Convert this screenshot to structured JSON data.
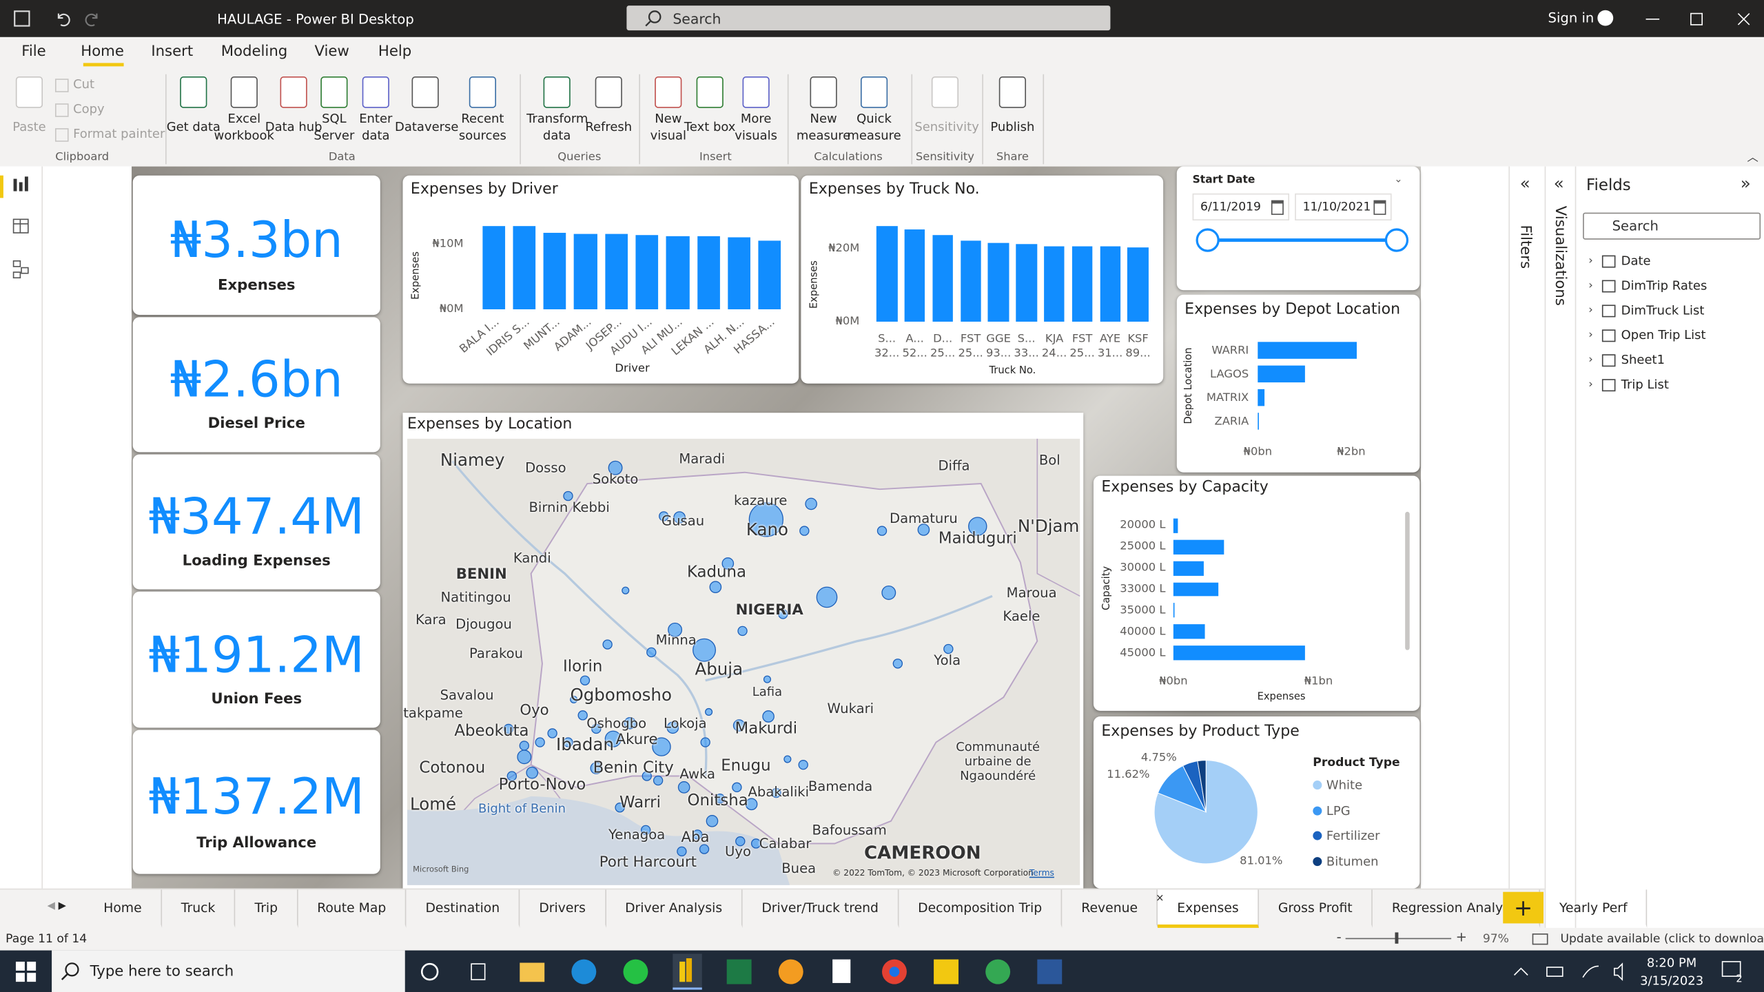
{
  "window": {
    "title": "HAULAGE - Power BI Desktop",
    "search": "Search",
    "sign_in": "Sign in"
  },
  "menu": [
    "File",
    "Home",
    "Insert",
    "Modeling",
    "View",
    "Help"
  ],
  "ribbon": {
    "clipboard_small": [
      "Cut",
      "Copy",
      "Format painter"
    ],
    "buttons": [
      "Paste",
      "Get data",
      "Excel workbook",
      "Data hub",
      "SQL Server",
      "Enter data",
      "Dataverse",
      "Recent sources",
      "Transform data",
      "Refresh",
      "New visual",
      "Text box",
      "More visuals",
      "New measure",
      "Quick measure",
      "Sensitivity",
      "Publish"
    ],
    "groups": [
      "Clipboard",
      "Data",
      "Queries",
      "Insert",
      "Calculations",
      "Sensitivity",
      "Share"
    ]
  },
  "cards": [
    {
      "value": "₦3.3bn",
      "label": "Expenses"
    },
    {
      "value": "₦2.6bn",
      "label": "Diesel Price"
    },
    {
      "value": "₦347.4M",
      "label": "Loading Expenses"
    },
    {
      "value": "₦191.2M",
      "label": "Union Fees"
    },
    {
      "value": "₦137.2M",
      "label": "Trip Allowance"
    }
  ],
  "driver_chart": {
    "type": "bar",
    "title": "Expenses by Driver",
    "x_label": "Driver",
    "y_label": "Expenses",
    "categories": [
      "BALA I...",
      "IDRIS S...",
      "MUNT...",
      "ADAM...",
      "JOSEP...",
      "AUDU I...",
      "ALI MU...",
      "LEKAN ...",
      "ALH. N...",
      "HASSA..."
    ],
    "values": [
      12800000,
      12800000,
      11700000,
      11600000,
      11600000,
      11400000,
      11200000,
      11200000,
      11000000,
      10500000
    ],
    "color": "#118dff",
    "ylim": [
      0,
      14000000
    ],
    "yticks": [
      {
        "value": 0,
        "label": "₦0M"
      },
      {
        "value": 10000000,
        "label": "₦10M"
      }
    ]
  },
  "truck_chart": {
    "type": "bar",
    "title": "Expenses by Truck No.",
    "x_label": "Truck No.",
    "y_label": "Expenses",
    "categories": [
      "S... 32...",
      "A... 52...",
      "D... 25...",
      "FST 25...",
      "GGE 93...",
      "S... 33...",
      "KJA 24...",
      "FST 25...",
      "AYE 31...",
      "KSF 89..."
    ],
    "values": [
      26200000,
      25200000,
      23700000,
      22200000,
      21500000,
      21200000,
      20600000,
      20600000,
      20600000,
      20300000
    ],
    "color": "#118dff",
    "ylim": [
      0,
      28000000
    ],
    "yticks": [
      {
        "value": 0,
        "label": "₦0M"
      },
      {
        "value": 20000000,
        "label": "₦20M"
      }
    ]
  },
  "slicer": {
    "title": "Start Date",
    "start": "6/11/2019",
    "end": "11/10/2021"
  },
  "depot_chart": {
    "type": "hbar",
    "title": "Expenses by Depot Location",
    "y_label": "Depot Location",
    "categories": [
      "WARRI",
      "LAGOS",
      "MATRIX",
      "ZARIA"
    ],
    "values": [
      2120000000,
      1010000000,
      140000000,
      20000000
    ],
    "color": "#118dff",
    "xlim": [
      0,
      2500000000
    ],
    "xticks": [
      {
        "value": 0,
        "label": "₦0bn"
      },
      {
        "value": 2000000000,
        "label": "₦2bn"
      }
    ]
  },
  "capacity_chart": {
    "type": "hbar",
    "title": "Expenses by Capacity",
    "y_label": "Capacity",
    "x_label": "Expenses",
    "categories": [
      "20000 L",
      "25000 L",
      "30000 L",
      "33000 L",
      "35000 L",
      "40000 L",
      "45000 L"
    ],
    "values": [
      30000000,
      350000000,
      210000000,
      310000000,
      10000000,
      220000000,
      910000000
    ],
    "color": "#118dff",
    "xlim": [
      0,
      1200000000
    ],
    "xticks": [
      {
        "value": 0,
        "label": "₦0bn"
      },
      {
        "value": 1000000000,
        "label": "₦1bn"
      }
    ]
  },
  "product_chart": {
    "type": "pie",
    "title": "Expenses by Product Type",
    "legend_title": "Product Type",
    "categories": [
      "White",
      "LPG",
      "Fertilizer",
      "Bitumen"
    ],
    "values": [
      81.01,
      11.62,
      4.75,
      2.62
    ],
    "value_labels": [
      "81.01%",
      "11.62%",
      "4.75%",
      null
    ],
    "colors": [
      "#a4cff7",
      "#3b98f3",
      "#1b63c0",
      "#0d3f80"
    ]
  },
  "map": {
    "title": "Expenses by Location",
    "labels": [
      "Niamey",
      "Dosso",
      "Sokoto",
      "Maradi",
      "Diffa",
      "Bol",
      "kazaure",
      "Birnin Kebbi",
      "Gusau",
      "Kano",
      "Damaturu",
      "Maiduguri",
      "N'Djam",
      "Kandi",
      "BENIN",
      "Natitingou",
      "Kaduna",
      "Maroua",
      "NIGERIA",
      "Kara",
      "Djougou",
      "Kaele",
      "Minna",
      "Parakou",
      "Abuja",
      "Yola",
      "Ilorin",
      "Savalou",
      "Ogbomosho",
      "Lafia",
      "takpame",
      "Oyo",
      "Wukari",
      "Oshogbo",
      "Lokoja",
      "Makurdi",
      "Abeokuta",
      "Ibadan",
      "Akure",
      "Communauté urbaine de Ngaoundéré",
      "Cotonou",
      "Benin City",
      "Enugu",
      "Awka",
      "Porto-Novo",
      "Bamenda",
      "Abakaliki",
      "Lomé",
      "Warri",
      "Onitsha",
      "Bight of Benin",
      "Bafoussam",
      "Yenagoa",
      "Aba",
      "Uyo",
      "Calabar",
      "CAMEROON",
      "Port Harcourt",
      "Buea"
    ],
    "attribution": "© 2022 TomTom, © 2023 Microsoft Corporation",
    "terms": "Terms",
    "provider": "Microsoft Bing"
  },
  "panes": {
    "filters": "Filters",
    "visualizations": "Visualizations",
    "fields": {
      "title": "Fields",
      "search": "Search",
      "tables": [
        "Date",
        "DimTrip Rates",
        "DimTruck List",
        "Open Trip List",
        "Sheet1",
        "Trip List"
      ]
    }
  },
  "tabs": [
    "Home",
    "Truck",
    "Trip",
    "Route Map",
    "Destination",
    "Drivers",
    "Driver Analysis",
    "Driver/Truck trend",
    "Decomposition Trip",
    "Revenue",
    "Expenses",
    "Gross Profit",
    "Regression Analysis",
    "Yearly Perf"
  ],
  "status": {
    "page": "Page 11 of 14",
    "zoom": "97%",
    "update": "Update available (click to download)"
  },
  "taskbar": {
    "search": "Type here to search",
    "time": "8:20 PM",
    "date": "3/15/2023",
    "notifications": 2
  }
}
